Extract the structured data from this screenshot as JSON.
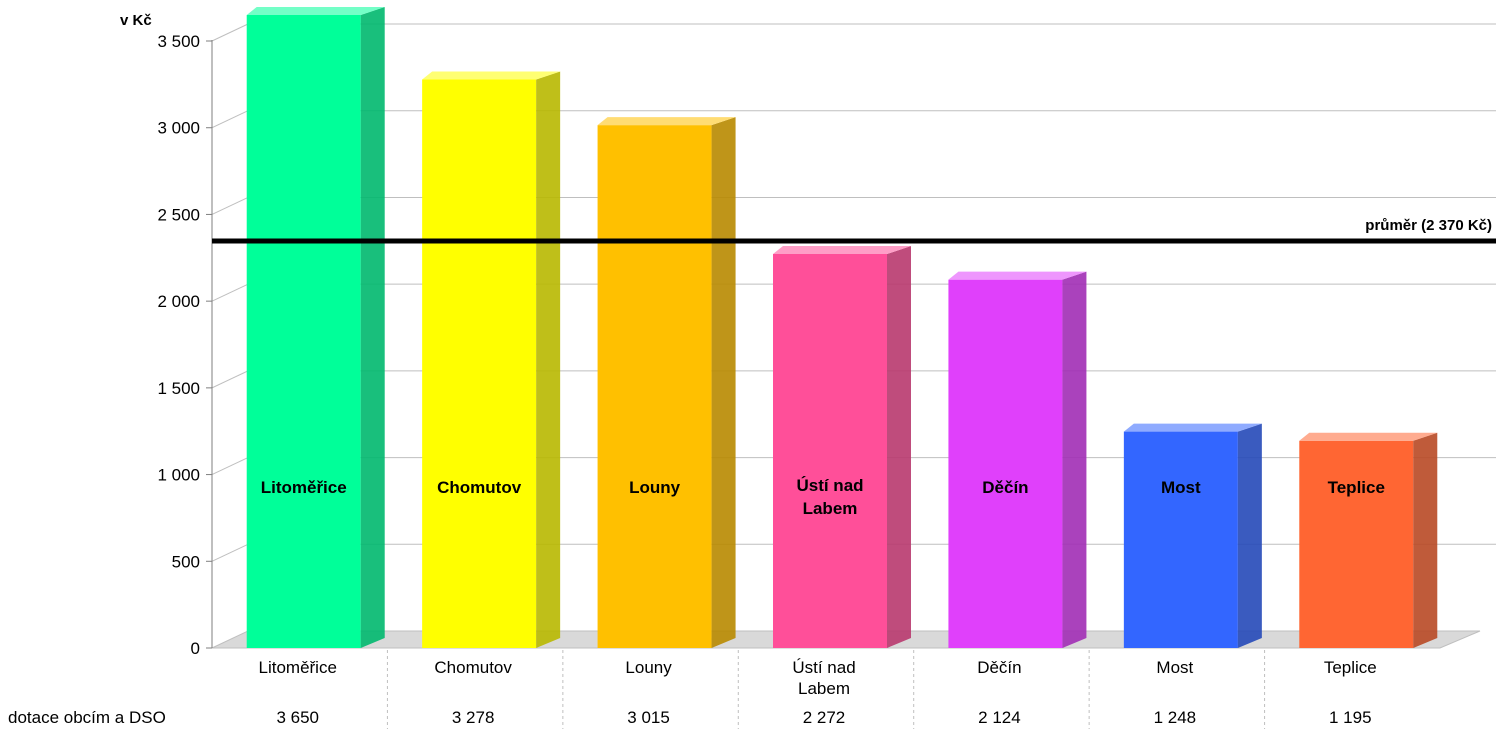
{
  "chart_data": {
    "type": "bar",
    "ylabel": "v Kč",
    "ylim": [
      0,
      3650
    ],
    "yticks": [
      0,
      500,
      1000,
      1500,
      2000,
      2500,
      3000,
      3500
    ],
    "ytick_labels": [
      "0",
      "500",
      "1 000",
      "1 500",
      "2 000",
      "2 500",
      "3 000",
      "3 500"
    ],
    "categories": [
      "Litoměřice",
      "Chomutov",
      "Louny",
      "Ústí nad Labem",
      "Děčín",
      "Most",
      "Teplice"
    ],
    "category_axis_labels": [
      [
        "Litoměřice"
      ],
      [
        "Chomutov"
      ],
      [
        "Louny"
      ],
      [
        "Ústí nad",
        "Labem"
      ],
      [
        "Děčín"
      ],
      [
        "Most"
      ],
      [
        "Teplice"
      ]
    ],
    "bar_inner_labels": [
      [
        "Litoměřice"
      ],
      [
        "Chomutov"
      ],
      [
        "Louny"
      ],
      [
        "Ústí  nad",
        "Labem"
      ],
      [
        "Děčín"
      ],
      [
        "Most"
      ],
      [
        "Teplice"
      ]
    ],
    "series": [
      {
        "name": "dotace obcím a DSO",
        "values": [
          3650,
          3278,
          3015,
          2272,
          2124,
          1248,
          1195
        ],
        "value_labels": [
          "3 650",
          "3 278",
          "3 015",
          "2 272",
          "2 124",
          "1 248",
          "1 195"
        ]
      }
    ],
    "bar_colors": [
      "#00FF99",
      "#FFFF00",
      "#FFC000",
      "#FF4F99",
      "#E040FB",
      "#3366FF",
      "#FF6633"
    ],
    "average": {
      "value": 2370,
      "label": "průměr (2 370 Kč)",
      "color": "#000000"
    },
    "grid": true,
    "table_row_label": "dotace obcím a DSO"
  }
}
